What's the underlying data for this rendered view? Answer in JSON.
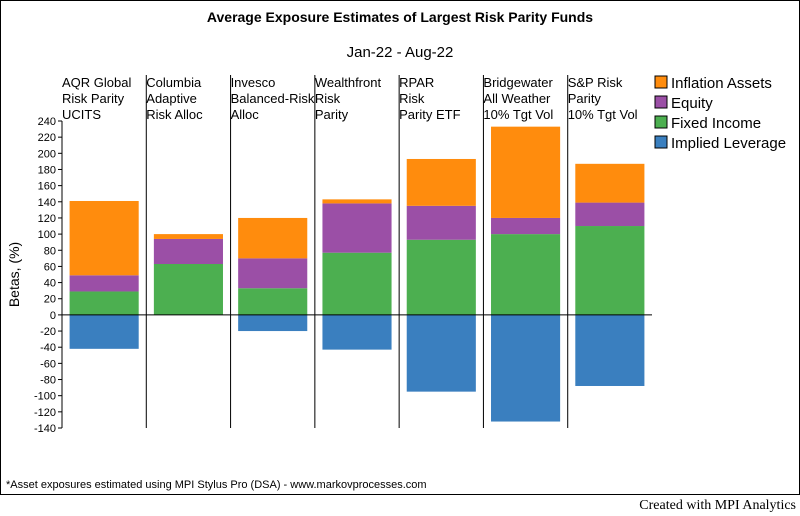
{
  "chart_data": {
    "type": "bar",
    "stacked": true,
    "title": "Average Exposure Estimates of Largest Risk Parity Funds",
    "subtitle": "Jan-22 - Aug-22",
    "ylabel": "Betas, (%)",
    "xlabel": "",
    "ylim": [
      -140,
      240
    ],
    "ytick_step": 20,
    "categories": [
      [
        "AQR Global",
        "Risk Parity",
        "UCITS"
      ],
      [
        "Columbia",
        "Adaptive",
        "Risk Alloc"
      ],
      [
        "Invesco",
        "Balanced-Risk",
        "Alloc"
      ],
      [
        "Wealthfront",
        "Risk",
        "Parity"
      ],
      [
        "RPAR",
        "Risk",
        "Parity ETF"
      ],
      [
        "Bridgewater",
        "All Weather",
        "10% Tgt Vol"
      ],
      [
        "S&P Risk",
        "Parity",
        "10% Tgt Vol"
      ]
    ],
    "series": [
      {
        "name": "Implied Leverage",
        "color": "#3a7fbf",
        "values": [
          -42,
          0,
          -20,
          -43,
          -95,
          -132,
          -88
        ]
      },
      {
        "name": "Fixed Income",
        "color": "#4caf50",
        "values": [
          29,
          63,
          33,
          77,
          93,
          100,
          110
        ]
      },
      {
        "name": "Equity",
        "color": "#9b4fa6",
        "values": [
          20,
          31,
          37,
          61,
          42,
          20,
          29
        ]
      },
      {
        "name": "Inflation Assets",
        "color": "#ff8c0d",
        "values": [
          92,
          6,
          50,
          5,
          58,
          113,
          48
        ]
      }
    ],
    "legend_order": [
      "Inflation Assets",
      "Equity",
      "Fixed Income",
      "Implied Leverage"
    ],
    "legend_position": "top-right",
    "grid": false,
    "footnote": "*Asset exposures estimated using MPI Stylus Pro (DSA) - www.markovprocesses.com"
  },
  "credit": "Created with MPI Analytics"
}
